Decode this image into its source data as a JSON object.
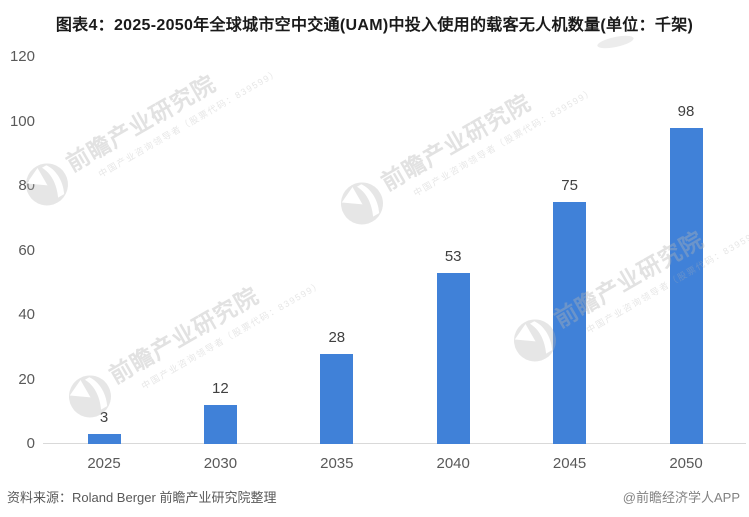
{
  "header": {
    "title": "图表4：2025-2050年全球城市空中交通(UAM)中投入使用的载客无人机数量(单位：千架)"
  },
  "chart_data": {
    "type": "bar",
    "title": "图表4：2025-2050年全球城市空中交通(UAM)中投入使用的载客无人机数量(单位：千架)",
    "categories": [
      "2025",
      "2030",
      "2035",
      "2040",
      "2045",
      "2050"
    ],
    "values": [
      3,
      12,
      28,
      53,
      75,
      98
    ],
    "unit": "千架",
    "xlabel": "",
    "ylabel": "",
    "ylim": [
      0,
      120
    ],
    "yticks": [
      0,
      20,
      40,
      60,
      80,
      100,
      120
    ],
    "grid": false,
    "legend": "none",
    "data_labels": true,
    "bar_color": "#4081D8",
    "label_color": "#404040",
    "tick_color": "#595959"
  },
  "watermark": {
    "logo_icon": "qianzhan-logo-icon",
    "text": "前瞻产业研究院",
    "subtext": "中国产业咨询领导者（股票代码：839599）"
  },
  "footer": {
    "source": "资料来源：Roland Berger 前瞻产业研究院整理",
    "brand": "@前瞻经济学人APP"
  }
}
